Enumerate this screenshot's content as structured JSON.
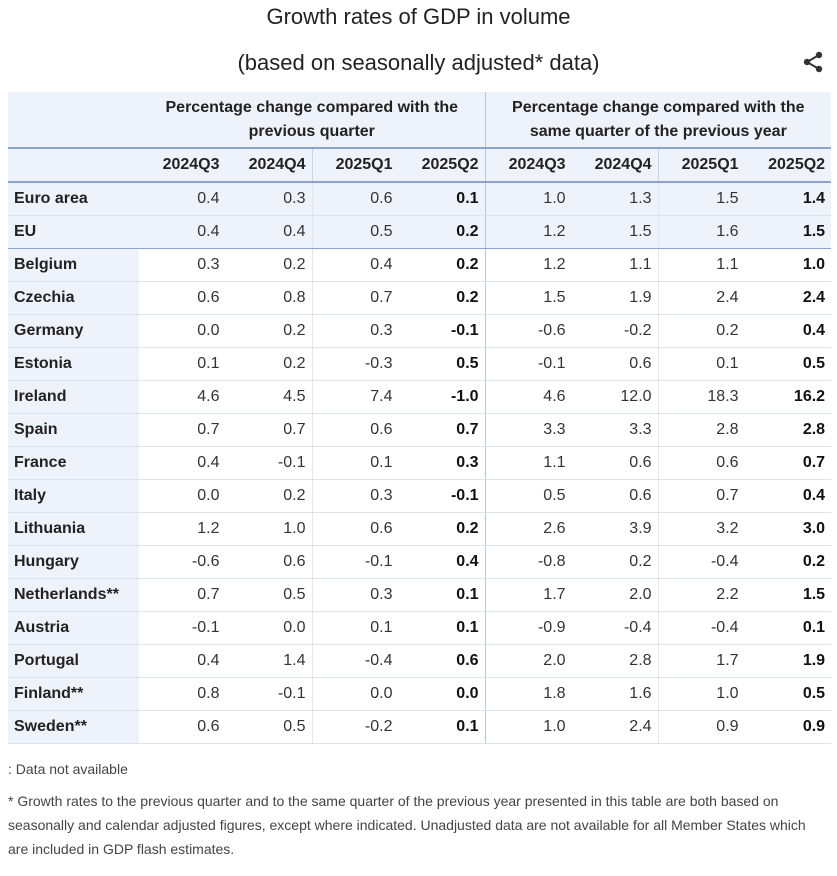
{
  "title": "Growth rates of GDP in volume",
  "subtitle": "(based on seasonally adjusted* data)",
  "icons": {
    "share": "share-icon"
  },
  "table": {
    "group_headers": [
      "Percentage change compared with the previous quarter",
      "Percentage change compared with the same quarter of the previous year"
    ],
    "quarters": [
      "2024Q3",
      "2024Q4",
      "2025Q1",
      "2025Q2",
      "2024Q3",
      "2024Q4",
      "2025Q1",
      "2025Q2"
    ],
    "rows": [
      {
        "country": "Euro area",
        "values": [
          "0.4",
          "0.3",
          "0.6",
          "0.1",
          "1.0",
          "1.3",
          "1.5",
          "1.4"
        ]
      },
      {
        "country": "EU",
        "values": [
          "0.4",
          "0.4",
          "0.5",
          "0.2",
          "1.2",
          "1.5",
          "1.6",
          "1.5"
        ]
      },
      {
        "country": "Belgium",
        "values": [
          "0.3",
          "0.2",
          "0.4",
          "0.2",
          "1.2",
          "1.1",
          "1.1",
          "1.0"
        ]
      },
      {
        "country": "Czechia",
        "values": [
          "0.6",
          "0.8",
          "0.7",
          "0.2",
          "1.5",
          "1.9",
          "2.4",
          "2.4"
        ]
      },
      {
        "country": "Germany",
        "values": [
          "0.0",
          "0.2",
          "0.3",
          "-0.1",
          "-0.6",
          "-0.2",
          "0.2",
          "0.4"
        ]
      },
      {
        "country": "Estonia",
        "values": [
          "0.1",
          "0.2",
          "-0.3",
          "0.5",
          "-0.1",
          "0.6",
          "0.1",
          "0.5"
        ]
      },
      {
        "country": "Ireland",
        "values": [
          "4.6",
          "4.5",
          "7.4",
          "-1.0",
          "4.6",
          "12.0",
          "18.3",
          "16.2"
        ]
      },
      {
        "country": "Spain",
        "values": [
          "0.7",
          "0.7",
          "0.6",
          "0.7",
          "3.3",
          "3.3",
          "2.8",
          "2.8"
        ]
      },
      {
        "country": "France",
        "values": [
          "0.4",
          "-0.1",
          "0.1",
          "0.3",
          "1.1",
          "0.6",
          "0.6",
          "0.7"
        ]
      },
      {
        "country": "Italy",
        "values": [
          "0.0",
          "0.2",
          "0.3",
          "-0.1",
          "0.5",
          "0.6",
          "0.7",
          "0.4"
        ]
      },
      {
        "country": "Lithuania",
        "values": [
          "1.2",
          "1.0",
          "0.6",
          "0.2",
          "2.6",
          "3.9",
          "3.2",
          "3.0"
        ]
      },
      {
        "country": "Hungary",
        "values": [
          "-0.6",
          "0.6",
          "-0.1",
          "0.4",
          "-0.8",
          "0.2",
          "-0.4",
          "0.2"
        ]
      },
      {
        "country": "Netherlands**",
        "values": [
          "0.7",
          "0.5",
          "0.3",
          "0.1",
          "1.7",
          "2.0",
          "2.2",
          "1.5"
        ]
      },
      {
        "country": "Austria",
        "values": [
          "-0.1",
          "0.0",
          "0.1",
          "0.1",
          "-0.9",
          "-0.4",
          "-0.4",
          "0.1"
        ]
      },
      {
        "country": "Portugal",
        "values": [
          "0.4",
          "1.4",
          "-0.4",
          "0.6",
          "2.0",
          "2.8",
          "1.7",
          "1.9"
        ]
      },
      {
        "country": "Finland**",
        "values": [
          "0.8",
          "-0.1",
          "0.0",
          "0.0",
          "1.8",
          "1.6",
          "1.0",
          "0.5"
        ]
      },
      {
        "country": "Sweden**",
        "values": [
          "0.6",
          "0.5",
          "-0.2",
          "0.1",
          "1.0",
          "2.4",
          "0.9",
          "0.9"
        ]
      }
    ]
  },
  "legend": ": Data not available",
  "footnote": "* Growth rates to the previous quarter and to the same quarter of the previous year presented in this table are both based on seasonally and calendar adjusted figures, except where indicated. Unadjusted data are not available for all Member States which are included in GDP flash estimates."
}
